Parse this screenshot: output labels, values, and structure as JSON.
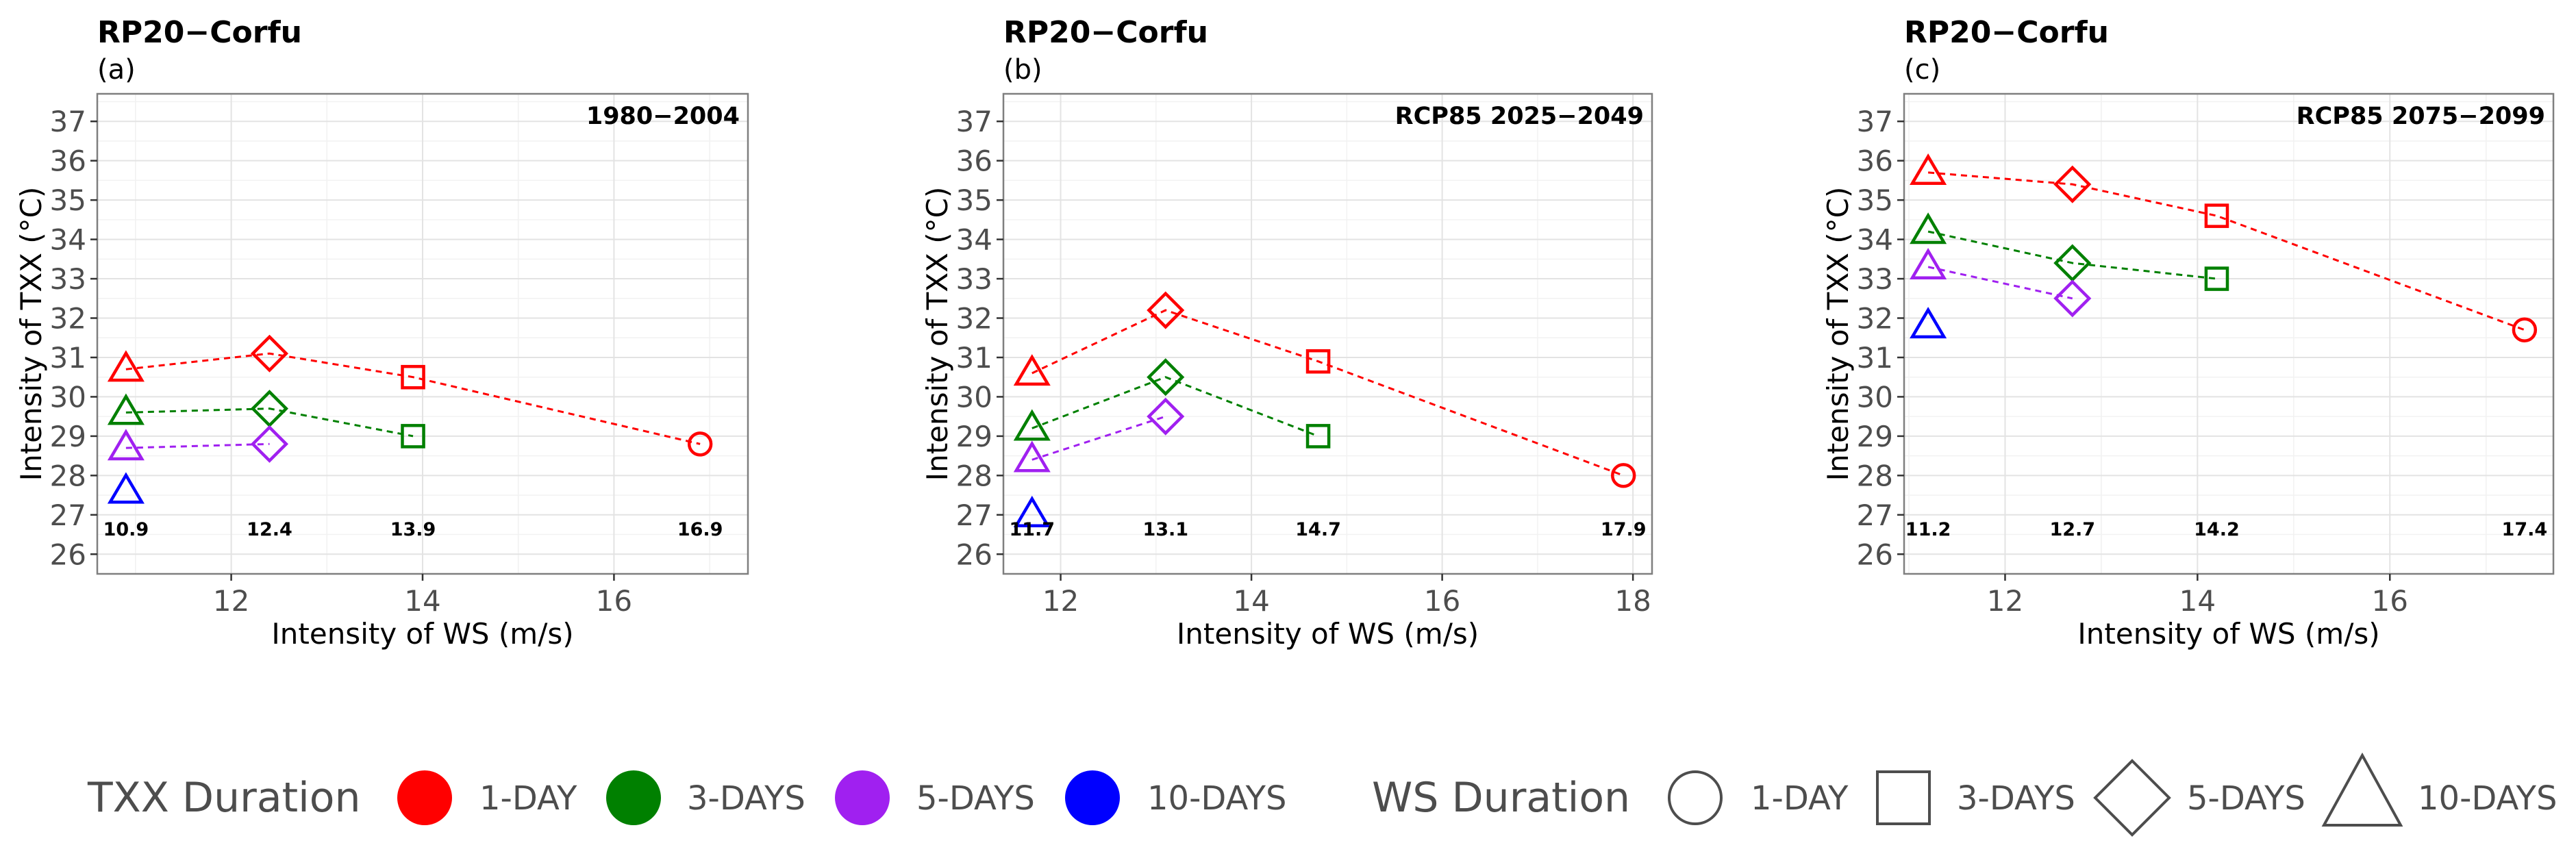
{
  "chart_data": [
    {
      "type": "scatter",
      "title": "RP20−Corfu",
      "subtitle": "(a)",
      "period": "1980−2004",
      "xlabel": "Intensity of WS (m/s)",
      "ylabel": "Intensity of TXX (°C)",
      "xlim": [
        10.6,
        17.4
      ],
      "ylim": [
        25.5,
        37.7
      ],
      "xticks": [
        12,
        14,
        16
      ],
      "yticks": [
        26,
        27,
        28,
        29,
        30,
        31,
        32,
        33,
        34,
        35,
        36,
        37
      ],
      "ws_labels": [
        {
          "x": 10.9,
          "text": "10.9"
        },
        {
          "x": 12.4,
          "text": "12.4"
        },
        {
          "x": 13.9,
          "text": "13.9"
        },
        {
          "x": 16.9,
          "text": "16.9"
        }
      ],
      "series": [
        {
          "name": "1-DAY",
          "color": "#ff0000",
          "points": [
            {
              "x": 10.9,
              "y": 30.7,
              "shape": "triangle"
            },
            {
              "x": 12.4,
              "y": 31.1,
              "shape": "diamond"
            },
            {
              "x": 13.9,
              "y": 30.5,
              "shape": "square"
            },
            {
              "x": 16.9,
              "y": 28.8,
              "shape": "circle"
            }
          ]
        },
        {
          "name": "3-DAYS",
          "color": "#008000",
          "points": [
            {
              "x": 10.9,
              "y": 29.6,
              "shape": "triangle"
            },
            {
              "x": 12.4,
              "y": 29.7,
              "shape": "diamond"
            },
            {
              "x": 13.9,
              "y": 29.0,
              "shape": "square"
            }
          ]
        },
        {
          "name": "5-DAYS",
          "color": "#a020f0",
          "points": [
            {
              "x": 10.9,
              "y": 28.7,
              "shape": "triangle"
            },
            {
              "x": 12.4,
              "y": 28.8,
              "shape": "diamond"
            }
          ]
        },
        {
          "name": "10-DAYS",
          "color": "#0000ff",
          "points": [
            {
              "x": 10.9,
              "y": 27.6,
              "shape": "triangle"
            }
          ]
        }
      ]
    },
    {
      "type": "scatter",
      "title": "RP20−Corfu",
      "subtitle": "(b)",
      "period": "RCP85 2025−2049",
      "xlabel": "Intensity of WS (m/s)",
      "ylabel": "Intensity of TXX (°C)",
      "xlim": [
        11.4,
        18.2
      ],
      "ylim": [
        25.5,
        37.7
      ],
      "xticks": [
        12,
        14,
        16,
        18
      ],
      "yticks": [
        26,
        27,
        28,
        29,
        30,
        31,
        32,
        33,
        34,
        35,
        36,
        37
      ],
      "ws_labels": [
        {
          "x": 11.7,
          "text": "11.7"
        },
        {
          "x": 13.1,
          "text": "13.1"
        },
        {
          "x": 14.7,
          "text": "14.7"
        },
        {
          "x": 17.9,
          "text": "17.9"
        }
      ],
      "series": [
        {
          "name": "1-DAY",
          "color": "#ff0000",
          "points": [
            {
              "x": 11.7,
              "y": 30.6,
              "shape": "triangle"
            },
            {
              "x": 13.1,
              "y": 32.2,
              "shape": "diamond"
            },
            {
              "x": 14.7,
              "y": 30.9,
              "shape": "square"
            },
            {
              "x": 17.9,
              "y": 28.0,
              "shape": "circle"
            }
          ]
        },
        {
          "name": "3-DAYS",
          "color": "#008000",
          "points": [
            {
              "x": 11.7,
              "y": 29.2,
              "shape": "triangle"
            },
            {
              "x": 13.1,
              "y": 30.5,
              "shape": "diamond"
            },
            {
              "x": 14.7,
              "y": 29.0,
              "shape": "square"
            }
          ]
        },
        {
          "name": "5-DAYS",
          "color": "#a020f0",
          "points": [
            {
              "x": 11.7,
              "y": 28.4,
              "shape": "triangle"
            },
            {
              "x": 13.1,
              "y": 29.5,
              "shape": "diamond"
            }
          ]
        },
        {
          "name": "10-DAYS",
          "color": "#0000ff",
          "points": [
            {
              "x": 11.7,
              "y": 27.0,
              "shape": "triangle"
            }
          ]
        }
      ]
    },
    {
      "type": "scatter",
      "title": "RP20−Corfu",
      "subtitle": "(c)",
      "period": "RCP85 2075−2099",
      "xlabel": "Intensity of WS (m/s)",
      "ylabel": "Intensity of TXX (°C)",
      "xlim": [
        10.95,
        17.7
      ],
      "ylim": [
        25.5,
        37.7
      ],
      "xticks": [
        12,
        14,
        16
      ],
      "yticks": [
        26,
        27,
        28,
        29,
        30,
        31,
        32,
        33,
        34,
        35,
        36,
        37
      ],
      "ws_labels": [
        {
          "x": 11.2,
          "text": "11.2"
        },
        {
          "x": 12.7,
          "text": "12.7"
        },
        {
          "x": 14.2,
          "text": "14.2"
        },
        {
          "x": 17.4,
          "text": "17.4"
        }
      ],
      "series": [
        {
          "name": "1-DAY",
          "color": "#ff0000",
          "points": [
            {
              "x": 11.2,
              "y": 35.7,
              "shape": "triangle"
            },
            {
              "x": 12.7,
              "y": 35.4,
              "shape": "diamond"
            },
            {
              "x": 14.2,
              "y": 34.6,
              "shape": "square"
            },
            {
              "x": 17.4,
              "y": 31.7,
              "shape": "circle"
            }
          ]
        },
        {
          "name": "3-DAYS",
          "color": "#008000",
          "points": [
            {
              "x": 11.2,
              "y": 34.2,
              "shape": "triangle"
            },
            {
              "x": 12.7,
              "y": 33.4,
              "shape": "diamond"
            },
            {
              "x": 14.2,
              "y": 33.0,
              "shape": "square"
            }
          ]
        },
        {
          "name": "5-DAYS",
          "color": "#a020f0",
          "points": [
            {
              "x": 11.2,
              "y": 33.3,
              "shape": "triangle"
            },
            {
              "x": 12.7,
              "y": 32.5,
              "shape": "diamond"
            }
          ]
        },
        {
          "name": "10-DAYS",
          "color": "#0000ff",
          "points": [
            {
              "x": 11.2,
              "y": 31.8,
              "shape": "triangle"
            }
          ]
        }
      ]
    }
  ],
  "legend": {
    "txx_title": "TXX Duration",
    "txx_items": [
      {
        "label": "1-DAY",
        "color": "#ff0000"
      },
      {
        "label": "3-DAYS",
        "color": "#008000"
      },
      {
        "label": "5-DAYS",
        "color": "#a020f0"
      },
      {
        "label": "10-DAYS",
        "color": "#0000ff"
      }
    ],
    "ws_title": "WS Duration",
    "ws_items": [
      {
        "label": "1-DAY",
        "shape": "circle"
      },
      {
        "label": "3-DAYS",
        "shape": "square"
      },
      {
        "label": "5-DAYS",
        "shape": "diamond"
      },
      {
        "label": "10-DAYS",
        "shape": "triangle"
      }
    ]
  }
}
